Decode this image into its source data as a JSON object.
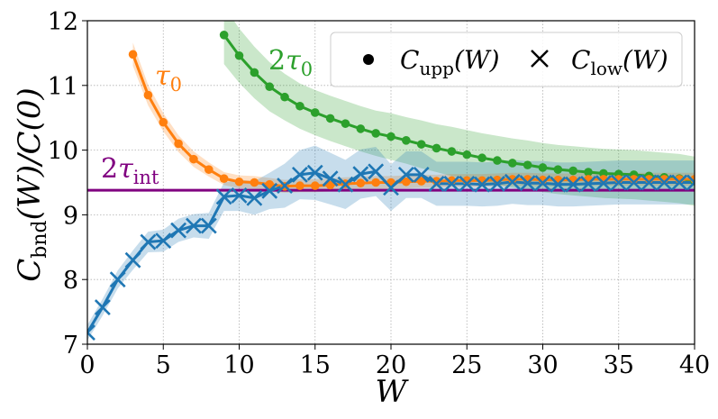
{
  "chart_data": {
    "type": "line",
    "xlabel": "W",
    "ylabel": "C_bnd(W)/C(0)",
    "xlim": [
      0,
      40
    ],
    "ylim": [
      7,
      12
    ],
    "xticks": [
      "0",
      "5",
      "10",
      "15",
      "20",
      "25",
      "30",
      "35",
      "40"
    ],
    "yticks": [
      "7",
      "8",
      "9",
      "10",
      "11",
      "12"
    ],
    "grid": true,
    "legend_position": "top-right",
    "legend": [
      {
        "marker": "dot",
        "label": "C_upp(W)"
      },
      {
        "marker": "cross",
        "label": "C_low(W)"
      }
    ],
    "hline": {
      "label": "2τ_int",
      "y": 9.38,
      "color": "#800080"
    },
    "series": [
      {
        "label": "τ0",
        "color": "#ff7f0e",
        "marker": "dot",
        "x": [
          3,
          4,
          5,
          6,
          7,
          8,
          9,
          10,
          11,
          12,
          13,
          14,
          15,
          16,
          17,
          18,
          19,
          20,
          21,
          22,
          23,
          24,
          25,
          26,
          27,
          28,
          29,
          30,
          31,
          32,
          33,
          34,
          35,
          36,
          37,
          38,
          39,
          40
        ],
        "y": [
          11.48,
          10.85,
          10.43,
          10.1,
          9.86,
          9.7,
          9.56,
          9.51,
          9.5,
          9.47,
          9.44,
          9.45,
          9.45,
          9.46,
          9.48,
          9.49,
          9.5,
          9.5,
          9.51,
          9.52,
          9.52,
          9.53,
          9.53,
          9.53,
          9.54,
          9.55,
          9.55,
          9.54,
          9.54,
          9.54,
          9.55,
          9.55,
          9.55,
          9.55,
          9.55,
          9.55,
          9.55,
          9.55
        ],
        "band": [
          0.18,
          0.16,
          0.14,
          0.13,
          0.12,
          0.11,
          0.1,
          0.1,
          0.1,
          0.1,
          0.1,
          0.1,
          0.1,
          0.1,
          0.1,
          0.1,
          0.1,
          0.1,
          0.1,
          0.1,
          0.1,
          0.1,
          0.1,
          0.1,
          0.1,
          0.1,
          0.1,
          0.1,
          0.1,
          0.1,
          0.1,
          0.1,
          0.1,
          0.1,
          0.1,
          0.1,
          0.1,
          0.1
        ]
      },
      {
        "label": "2τ0",
        "color": "#2ca02c",
        "marker": "dot",
        "x": [
          9,
          10,
          11,
          12,
          13,
          14,
          15,
          16,
          17,
          18,
          19,
          20,
          21,
          22,
          23,
          24,
          25,
          26,
          27,
          28,
          29,
          30,
          31,
          32,
          33,
          34,
          35,
          36,
          37,
          38,
          39,
          40
        ],
        "y": [
          11.78,
          11.46,
          11.2,
          10.98,
          10.82,
          10.68,
          10.58,
          10.49,
          10.41,
          10.33,
          10.26,
          10.21,
          10.15,
          10.09,
          10.03,
          9.98,
          9.93,
          9.88,
          9.84,
          9.8,
          9.77,
          9.73,
          9.7,
          9.68,
          9.66,
          9.64,
          9.63,
          9.62,
          9.6,
          9.58,
          9.56,
          9.52
        ],
        "band": [
          0.45,
          0.42,
          0.4,
          0.38,
          0.36,
          0.35,
          0.35,
          0.35,
          0.35,
          0.35,
          0.35,
          0.36,
          0.36,
          0.37,
          0.37,
          0.38,
          0.38,
          0.38,
          0.38,
          0.38,
          0.38,
          0.38,
          0.38,
          0.38,
          0.38,
          0.38,
          0.38,
          0.38,
          0.38,
          0.38,
          0.38,
          0.38
        ]
      },
      {
        "label": "C_low",
        "color": "#1f77b4",
        "marker": "cross",
        "x": [
          0,
          1,
          2,
          3,
          4,
          5,
          6,
          7,
          8,
          9,
          10,
          11,
          12,
          13,
          14,
          15,
          16,
          17,
          18,
          19,
          20,
          21,
          22,
          23,
          24,
          25,
          26,
          27,
          28,
          29,
          30,
          31,
          32,
          33,
          34,
          35,
          36,
          37,
          38,
          39,
          40
        ],
        "y": [
          7.18,
          7.57,
          8.0,
          8.3,
          8.58,
          8.6,
          8.76,
          8.83,
          8.83,
          9.28,
          9.3,
          9.26,
          9.37,
          9.45,
          9.62,
          9.65,
          9.56,
          9.47,
          9.63,
          9.67,
          9.42,
          9.62,
          9.62,
          9.48,
          9.48,
          9.48,
          9.47,
          9.48,
          9.51,
          9.49,
          9.49,
          9.47,
          9.47,
          9.48,
          9.49,
          9.5,
          9.5,
          9.5,
          9.5,
          9.5,
          9.5
        ],
        "band": [
          0.12,
          0.13,
          0.14,
          0.15,
          0.16,
          0.17,
          0.18,
          0.18,
          0.2,
          0.22,
          0.24,
          0.26,
          0.28,
          0.34,
          0.38,
          0.42,
          0.4,
          0.38,
          0.38,
          0.38,
          0.36,
          0.36,
          0.36,
          0.34,
          0.34,
          0.34,
          0.34,
          0.34,
          0.34,
          0.34,
          0.34,
          0.34,
          0.34,
          0.34,
          0.34,
          0.34,
          0.34,
          0.34,
          0.34,
          0.34,
          0.34
        ]
      }
    ]
  }
}
